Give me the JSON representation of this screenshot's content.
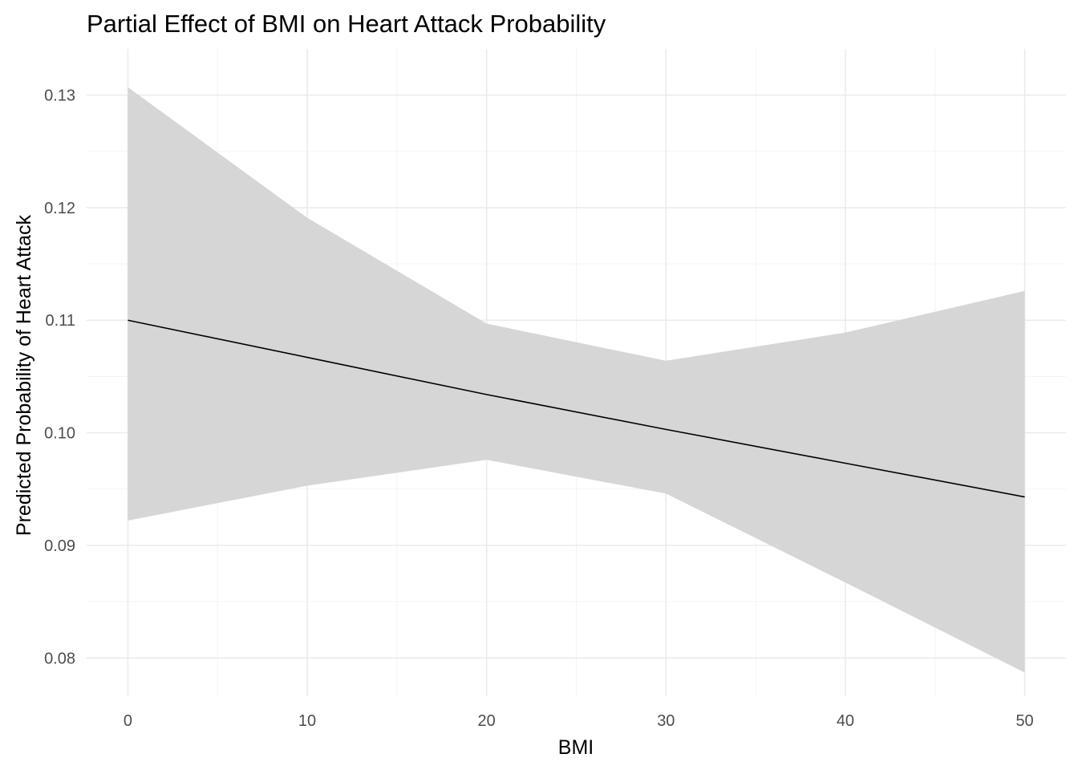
{
  "chart_data": {
    "type": "line",
    "title": "Partial Effect of BMI on Heart Attack Probability",
    "xlabel": "BMI",
    "ylabel": "Predicted Probability of Heart Attack",
    "xlim": [
      -2.3,
      52.3
    ],
    "ylim": [
      0.0766,
      0.1341
    ],
    "x_ticks": [
      0,
      10,
      20,
      30,
      40,
      50
    ],
    "x_tick_labels": [
      "0",
      "10",
      "20",
      "30",
      "40",
      "50"
    ],
    "y_ticks": [
      0.08,
      0.09,
      0.1,
      0.11,
      0.12,
      0.13
    ],
    "y_tick_labels": [
      "0.08",
      "0.09",
      "0.10",
      "0.11",
      "0.12",
      "0.13"
    ],
    "grid": true,
    "legend": "none",
    "series": [
      {
        "x": [
          0,
          10,
          20,
          30,
          40,
          50
        ],
        "values": [
          0.11,
          0.1067,
          0.1034,
          0.1003,
          0.0973,
          0.0943
        ],
        "lower": [
          0.0922,
          0.0953,
          0.0976,
          0.0946,
          0.0867,
          0.0787
        ],
        "upper": [
          0.1307,
          0.1191,
          0.1097,
          0.1064,
          0.1089,
          0.1126
        ],
        "line_color": "#000000",
        "ribbon_color": "#d6d6d6"
      }
    ]
  }
}
